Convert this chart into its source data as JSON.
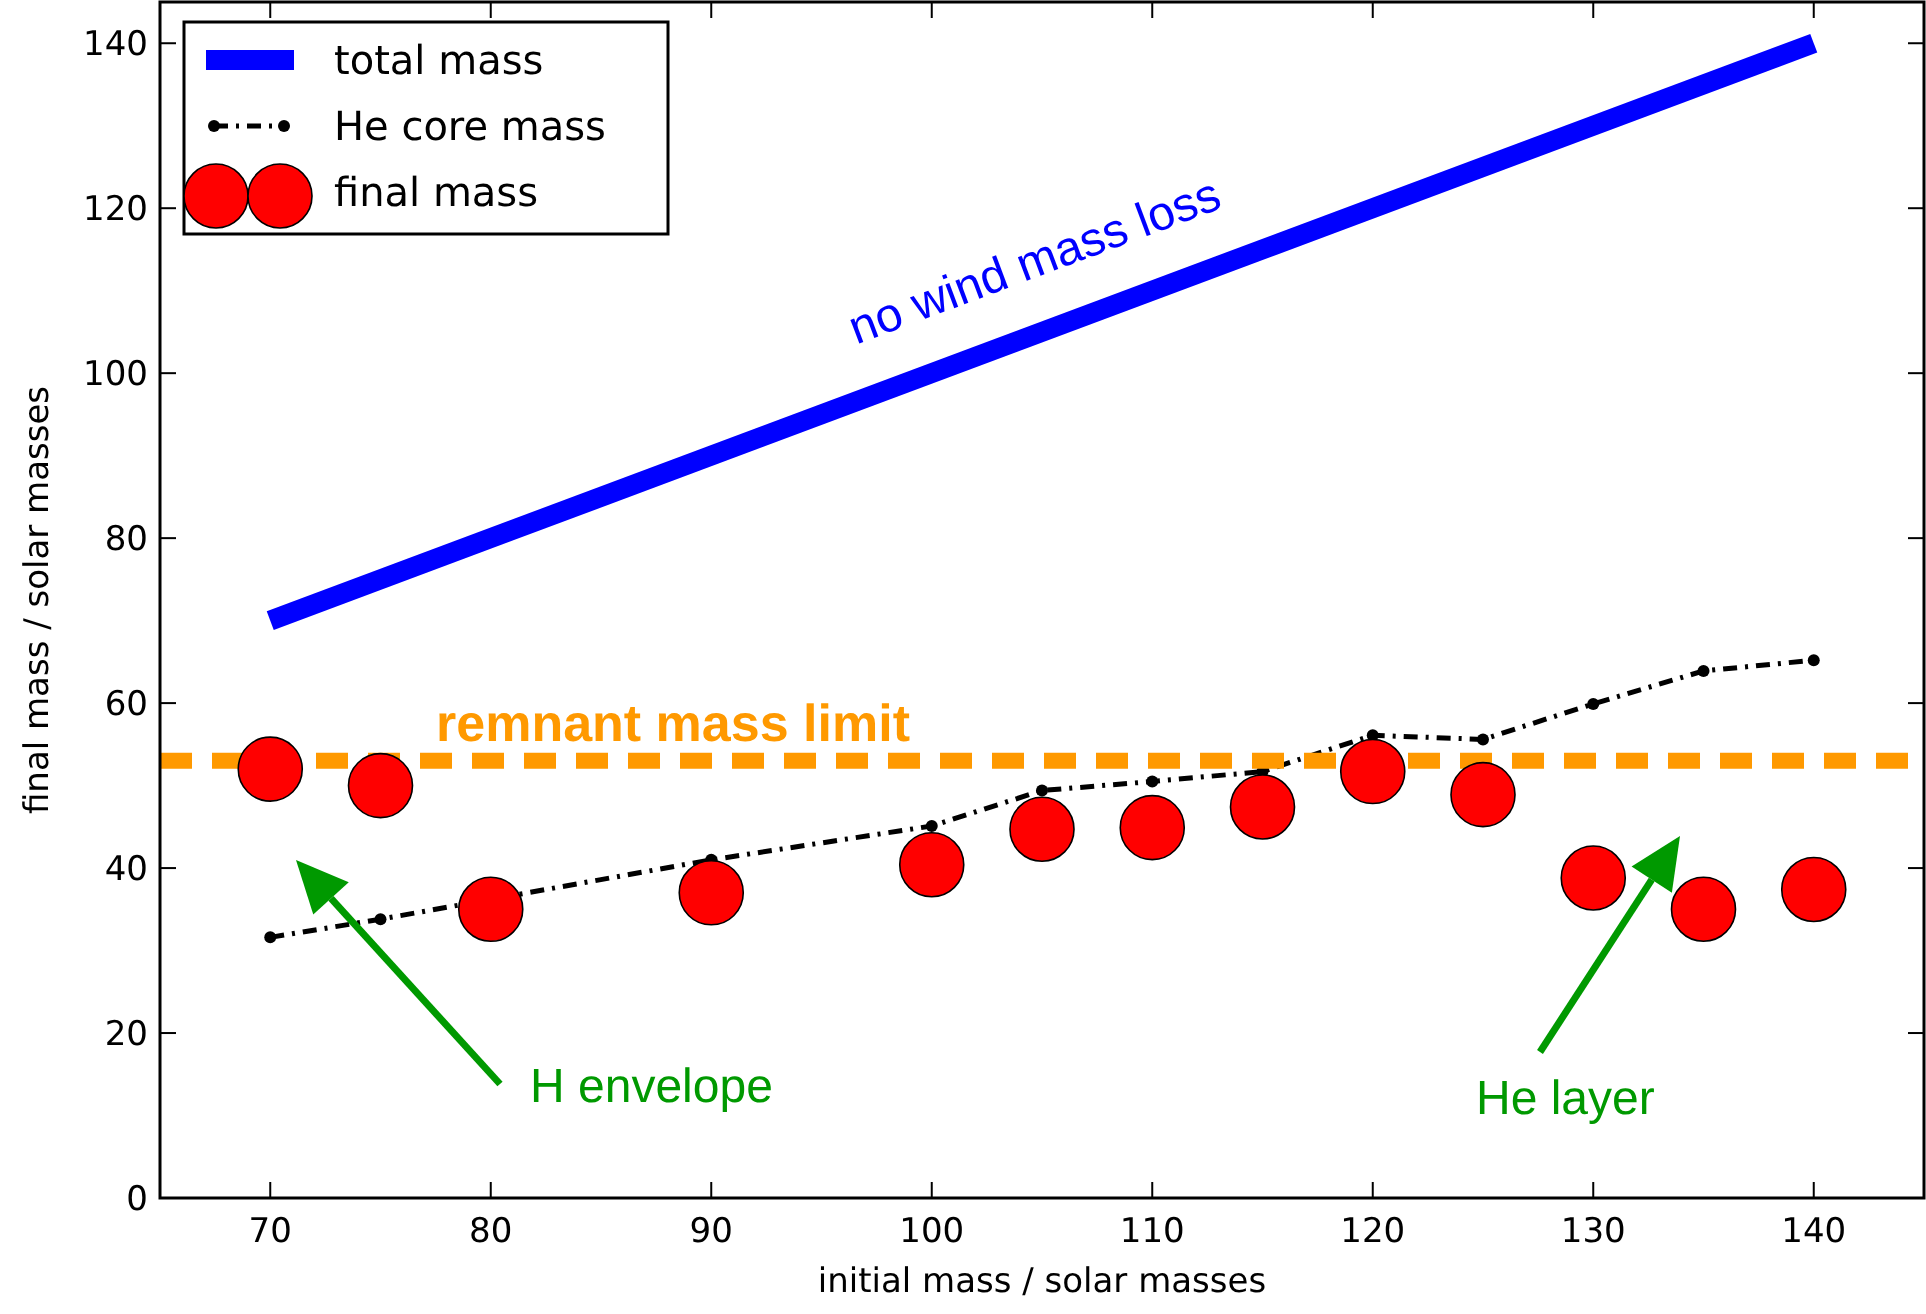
{
  "chart_data": {
    "type": "line",
    "xlabel": "initial mass / solar masses",
    "ylabel": "final mass / solar masses",
    "xlim": [
      65,
      145
    ],
    "ylim": [
      0,
      145
    ],
    "xticks": [
      70,
      80,
      90,
      100,
      110,
      120,
      130,
      140
    ],
    "yticks": [
      0,
      20,
      40,
      60,
      80,
      100,
      120,
      140
    ],
    "grid": false,
    "legend": "top left",
    "series": [
      {
        "name": "total mass",
        "color": "#0000ff",
        "x": [
          70,
          140
        ],
        "values": [
          70,
          140
        ],
        "line_style": "solid",
        "marker": "none"
      },
      {
        "name": "He core mass",
        "color": "#000000",
        "x": [
          70,
          75,
          80,
          90,
          100,
          105,
          110,
          115,
          120,
          125,
          130,
          135,
          140
        ],
        "values": [
          31.6,
          33.8,
          null,
          41,
          45.1,
          49.4,
          50.5,
          51.7,
          56.1,
          55.6,
          59.9,
          63.9,
          65.2
        ],
        "line_style": "dashed",
        "marker": "circle"
      },
      {
        "name": "final mass",
        "type": "scatter",
        "color": "#ff0000",
        "x": [
          70,
          75,
          80,
          90,
          100,
          105,
          110,
          115,
          120,
          125,
          130,
          135,
          140
        ],
        "values": [
          52,
          50,
          35,
          37,
          40.4,
          44.7,
          44.9,
          47.4,
          51.7,
          48.9,
          38.8,
          35,
          37.4
        ],
        "marker": "circle"
      }
    ],
    "ref_lines": [
      {
        "axis": "y",
        "value": 53,
        "label": "remnant mass limit",
        "color": "#ff9900",
        "line_style": "dashed"
      }
    ],
    "annotations": [
      "no wind mass loss",
      "H envelope",
      "He layer"
    ]
  }
}
